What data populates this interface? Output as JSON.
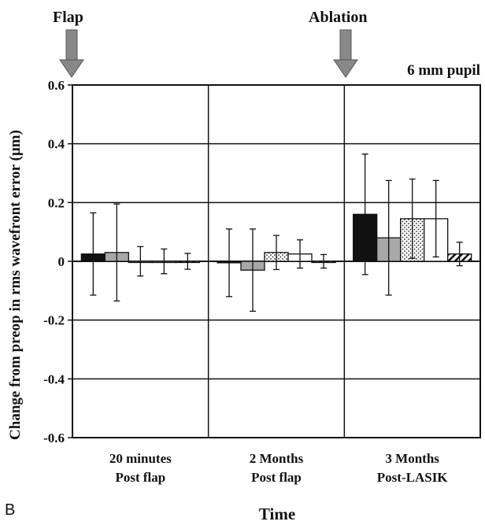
{
  "panel_letter": "B",
  "annotations": {
    "flap": "Flap",
    "ablation": "Ablation",
    "pupil": "6 mm pupil"
  },
  "chart_data": {
    "type": "bar",
    "ylabel": "Change from preop in rms wavefront error (µm)",
    "xlabel": "Time",
    "ylim": [
      -0.6,
      0.6
    ],
    "yticks": [
      "-0.6",
      "-0.4",
      "-0.2",
      "0",
      "0.2",
      "0.4",
      "0.6"
    ],
    "grid": "horizontal and vertical group separators",
    "categories": [
      {
        "line1": "20 minutes",
        "line2": "Post flap"
      },
      {
        "line1": "2 Months",
        "line2": "Post flap"
      },
      {
        "line1": "3 Months",
        "line2": "Post-LASIK"
      }
    ],
    "series": [
      {
        "pattern": "solid",
        "values": [
          0.025,
          -0.005,
          0.16
        ],
        "errors": [
          0.14,
          0.115,
          0.205
        ]
      },
      {
        "pattern": "gray",
        "values": [
          0.03,
          -0.03,
          0.08
        ],
        "errors": [
          0.165,
          0.14,
          0.195
        ]
      },
      {
        "pattern": "dotted",
        "values": [
          0.0,
          0.03,
          0.145
        ],
        "errors": [
          0.05,
          0.058,
          0.135
        ]
      },
      {
        "pattern": "open",
        "values": [
          0.0,
          0.025,
          0.145
        ],
        "errors": [
          0.042,
          0.048,
          0.13
        ]
      },
      {
        "pattern": "hatched",
        "values": [
          0.0,
          0.0,
          0.025
        ],
        "errors": [
          0.027,
          0.023,
          0.04
        ]
      }
    ]
  }
}
